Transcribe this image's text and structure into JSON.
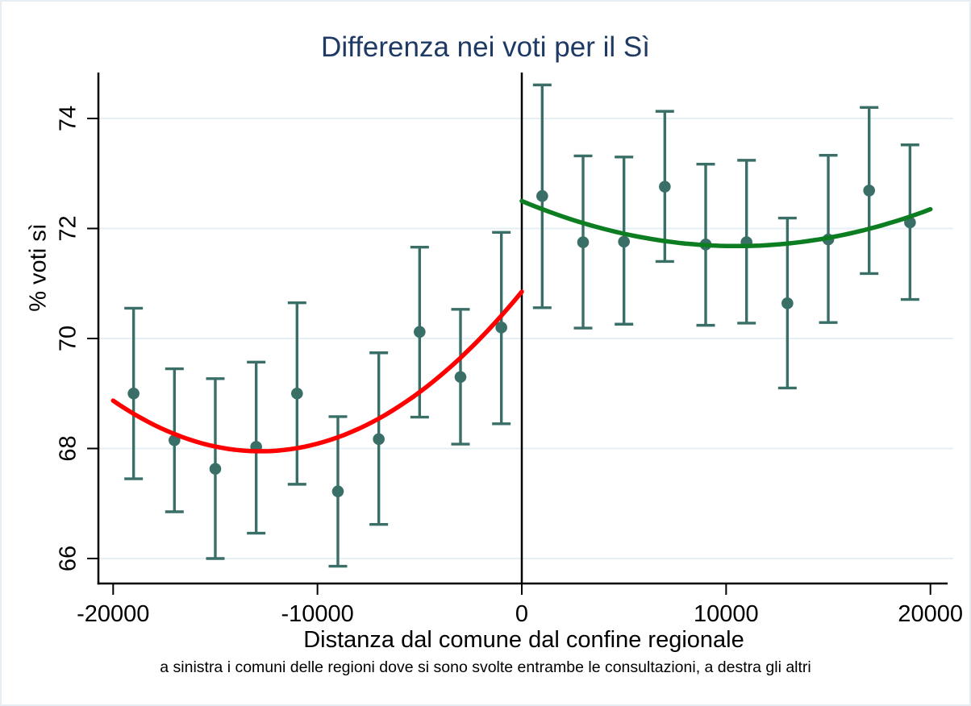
{
  "figure": {
    "title": "Differenza nei voti per il Sì",
    "title_color": "#1e3a64",
    "background_color": "#ffffff",
    "border_color": "#e7eef3"
  },
  "chart_data": {
    "type": "scatter",
    "subtype": "regression-discontinuity-binned",
    "title": "Differenza nei voti per il Sì",
    "xlabel": "Distanza dal comune dal confine regionale",
    "ylabel": "% voti sì",
    "note": "a sinistra i comuni delle regioni dove si sono svolte entrambe le consultazioni, a destra gli altri",
    "x_ticks": [
      -20000,
      -10000,
      0,
      10000,
      20000
    ],
    "y_ticks": [
      66,
      68,
      70,
      72,
      74
    ],
    "xlim": [
      -20000,
      20000
    ],
    "ylim": [
      65.5,
      74.8
    ],
    "grid": "horizontal-only",
    "legend": "none",
    "cutoff_line_x": 0,
    "colors": {
      "marker": "#3a6f68",
      "error_bar": "#3a6f68",
      "left_fit": "#fe0000",
      "right_fit": "#0c7d20",
      "gridline": "#e6eff3",
      "axis": "#000000",
      "cutoff_line": "#000000"
    },
    "series": {
      "left": {
        "side": "sinistra (x < 0)",
        "fit_color": "#fe0000",
        "fit_through": [
          [
            -20000,
            68.87
          ],
          [
            -13000,
            67.95
          ],
          [
            0,
            70.85
          ]
        ],
        "points": [
          {
            "x": -19000,
            "y": 69.0,
            "ci_low": 67.45,
            "ci_high": 70.55
          },
          {
            "x": -17000,
            "y": 68.15,
            "ci_low": 66.85,
            "ci_high": 69.45
          },
          {
            "x": -15000,
            "y": 67.63,
            "ci_low": 66.0,
            "ci_high": 69.27
          },
          {
            "x": -13000,
            "y": 68.03,
            "ci_low": 66.46,
            "ci_high": 69.57
          },
          {
            "x": -11000,
            "y": 69.0,
            "ci_low": 67.35,
            "ci_high": 70.65
          },
          {
            "x": -9000,
            "y": 67.22,
            "ci_low": 65.86,
            "ci_high": 68.58
          },
          {
            "x": -7000,
            "y": 68.17,
            "ci_low": 66.62,
            "ci_high": 69.74
          },
          {
            "x": -5000,
            "y": 70.12,
            "ci_low": 68.57,
            "ci_high": 71.66
          },
          {
            "x": -3000,
            "y": 69.3,
            "ci_low": 68.08,
            "ci_high": 70.53
          },
          {
            "x": -1000,
            "y": 70.2,
            "ci_low": 68.45,
            "ci_high": 71.93
          }
        ]
      },
      "right": {
        "side": "destra (x > 0)",
        "fit_color": "#0c7d20",
        "fit_through": [
          [
            0,
            72.5
          ],
          [
            10500,
            71.68
          ],
          [
            20000,
            72.35
          ]
        ],
        "points": [
          {
            "x": 1000,
            "y": 72.59,
            "ci_low": 70.56,
            "ci_high": 74.61
          },
          {
            "x": 3000,
            "y": 71.75,
            "ci_low": 70.19,
            "ci_high": 73.32
          },
          {
            "x": 5000,
            "y": 71.76,
            "ci_low": 70.26,
            "ci_high": 73.3
          },
          {
            "x": 7000,
            "y": 72.76,
            "ci_low": 71.4,
            "ci_high": 74.13
          },
          {
            "x": 9000,
            "y": 71.71,
            "ci_low": 70.24,
            "ci_high": 73.17
          },
          {
            "x": 11000,
            "y": 71.75,
            "ci_low": 70.28,
            "ci_high": 73.24
          },
          {
            "x": 13000,
            "y": 70.64,
            "ci_low": 69.1,
            "ci_high": 72.19
          },
          {
            "x": 15000,
            "y": 71.8,
            "ci_low": 70.29,
            "ci_high": 73.33
          },
          {
            "x": 17000,
            "y": 72.69,
            "ci_low": 71.18,
            "ci_high": 74.2
          },
          {
            "x": 19000,
            "y": 72.11,
            "ci_low": 70.71,
            "ci_high": 73.52
          }
        ]
      }
    }
  }
}
